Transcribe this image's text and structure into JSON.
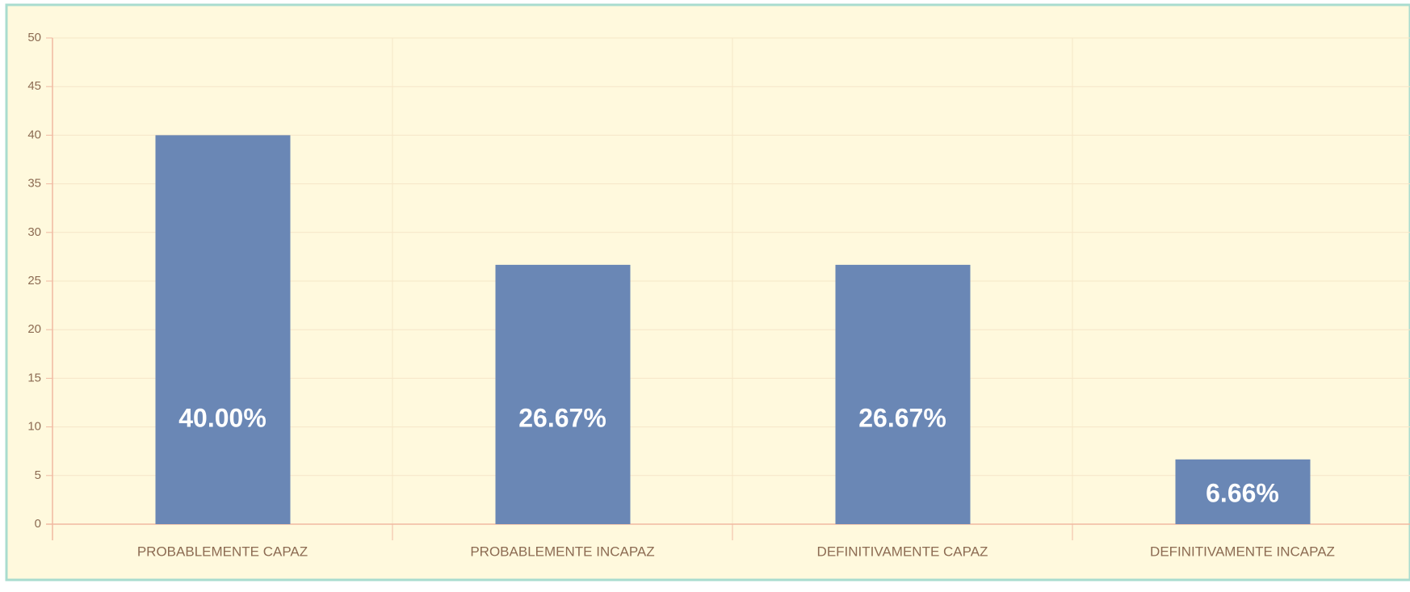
{
  "chart_data": {
    "type": "bar",
    "categories": [
      "PROBABLEMENTE CAPAZ",
      "PROBABLEMENTE INCAPAZ",
      "DEFINITIVAMENTE CAPAZ",
      "DEFINITIVAMENTE  INCAPAZ"
    ],
    "values": [
      40,
      26.67,
      26.67,
      6.66
    ],
    "value_labels": [
      "40.00%",
      "26.67%",
      "26.67%",
      "6.66%"
    ],
    "color": "#6a87b5",
    "ylim": [
      0,
      50
    ],
    "yticks": [
      0,
      5,
      10,
      15,
      20,
      25,
      30,
      35,
      40,
      45,
      50
    ],
    "grid": true
  }
}
